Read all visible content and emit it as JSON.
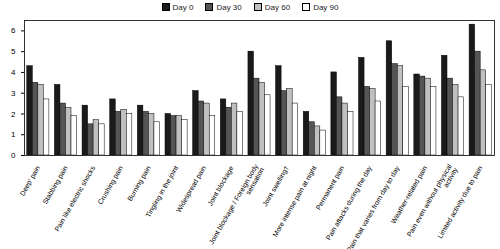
{
  "chart_data": {
    "type": "bar",
    "legend": "top",
    "categories": [
      "Deep' pain",
      "Stabbing pain",
      "Pain like electric shocks",
      "Crushing pain",
      "Burning pain",
      "Tingling in the joint",
      "Widespread pain",
      "Joint blockage",
      "Joint blockage / Foreign body sensation",
      "Joint swelling†",
      "More intense pain at night",
      "Permanent pain",
      "Pain attacks during the day",
      "Pain that varies from day to day",
      "Weather-related pain",
      "Pain even without physical activity",
      "Limited activity due to pain"
    ],
    "series": [
      {
        "name": "Day 0",
        "color": "#1a1a1a",
        "values": [
          4.3,
          3.4,
          2.4,
          2.7,
          2.4,
          2.0,
          3.1,
          2.7,
          5.0,
          4.3,
          2.1,
          4.0,
          4.7,
          5.5,
          3.9,
          4.8,
          6.3
        ]
      },
      {
        "name": "Day 30",
        "color": "#555555",
        "values": [
          3.5,
          2.5,
          1.5,
          2.1,
          2.1,
          1.9,
          2.6,
          2.3,
          3.7,
          3.1,
          1.6,
          2.8,
          3.3,
          4.4,
          3.8,
          3.7,
          5.0
        ]
      },
      {
        "name": "Day 60",
        "color": "#c0c0c0",
        "values": [
          3.4,
          2.3,
          1.7,
          2.2,
          2.0,
          1.9,
          2.5,
          2.5,
          3.5,
          3.2,
          1.4,
          2.5,
          3.2,
          4.3,
          3.7,
          3.4,
          4.1
        ]
      },
      {
        "name": "Day 90",
        "color": "#ffffff",
        "values": [
          2.7,
          1.9,
          1.5,
          2.0,
          1.6,
          1.7,
          1.9,
          2.1,
          2.9,
          2.5,
          1.2,
          2.1,
          2.6,
          3.3,
          3.3,
          2.8,
          3.4
        ]
      }
    ],
    "ylim": [
      0,
      6.5
    ],
    "yticks": [
      0,
      1,
      2,
      3,
      4,
      5,
      6
    ]
  }
}
